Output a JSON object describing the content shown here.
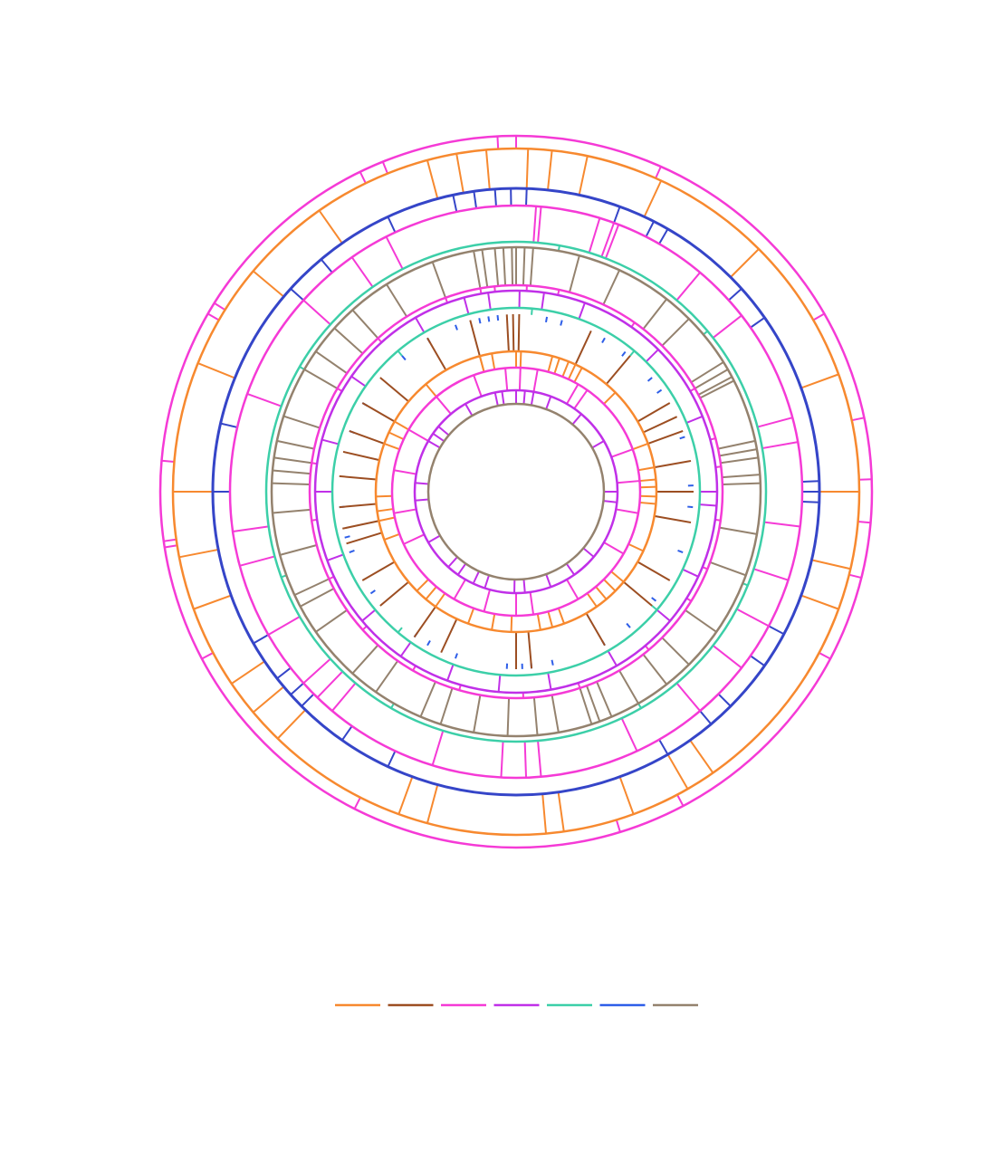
{
  "chart_data": {
    "type": "radial-ticks",
    "series": [
      {
        "color": "#f53ad6",
        "values": [
          -3,
          0,
          24,
          60,
          78,
          88,
          95,
          104,
          118,
          152,
          163,
          207,
          242,
          261,
          262,
          275,
          300,
          302,
          334,
          338
        ]
      },
      {
        "color": "#f7892f",
        "values": [
          -5,
          2,
          6,
          12,
          25,
          45,
          70,
          90,
          103,
          110,
          145,
          150,
          160,
          172,
          175,
          195,
          200,
          224,
          230,
          236,
          250,
          259,
          270,
          292,
          310,
          325,
          345,
          350
        ]
      },
      {
        "color": "#3545c8",
        "values": [
          -4,
          -1,
          2,
          20,
          27,
          30,
          48,
          55,
          88,
          90,
          92,
          118,
          125,
          135,
          140,
          150,
          205,
          215,
          225,
          228,
          232,
          240,
          270,
          283,
          312,
          320,
          335,
          348,
          352
        ]
      },
      {
        "color": "#f53ad6",
        "values": [
          4,
          5,
          17,
          20,
          21,
          40,
          52,
          75,
          80,
          97,
          108,
          118,
          128,
          140,
          155,
          175,
          178,
          183,
          197,
          220,
          224,
          228,
          240,
          255,
          262,
          290,
          312,
          325,
          333
        ]
      },
      {
        "color": "#3ccfa8",
        "values": [
          10,
          50,
          112,
          150,
          210,
          250,
          300
        ]
      },
      {
        "color": "#94826e",
        "values": [
          -8,
          -5,
          -3,
          -1,
          0,
          2,
          4,
          15,
          25,
          38,
          45,
          58,
          60,
          62,
          63,
          78,
          80,
          82,
          86,
          88,
          100,
          110,
          125,
          135,
          142,
          150,
          157,
          160,
          162,
          170,
          175,
          182,
          190,
          198,
          203,
          215,
          222,
          235,
          242,
          245,
          255,
          265,
          272,
          275,
          278,
          282,
          288,
          300,
          305,
          312,
          318,
          328,
          340,
          350
        ]
      },
      {
        "color": "#f53ad6",
        "values": [
          -10,
          -6,
          3,
          12,
          35,
          60,
          75,
          83,
          98,
          112,
          122,
          140,
          162,
          178,
          196,
          210,
          228,
          245,
          262,
          278,
          300,
          318,
          340
        ]
      },
      {
        "color": "#c030e8",
        "values": [
          -15,
          -8,
          1,
          8,
          20,
          45,
          68,
          90,
          94,
          115,
          130,
          150,
          170,
          185,
          200,
          215,
          230,
          250,
          270,
          285,
          305,
          330
        ]
      },
      {
        "color": "#3ccfa8",
        "values": [
          5,
          40,
          130,
          220,
          320
        ]
      },
      {
        "color": "#2e5ee8",
        "values": [
          -12,
          -9,
          -6,
          10,
          15,
          30,
          38,
          50,
          55,
          72,
          88,
          90,
          95,
          110,
          128,
          140,
          150,
          168,
          175,
          178,
          183,
          200,
          210,
          215,
          235,
          250,
          255,
          265,
          290,
          300,
          320,
          330,
          340
        ]
      },
      {
        "color": "#9c4e22",
        "values": [
          -3,
          -1,
          1,
          25,
          40,
          60,
          65,
          70,
          80,
          90,
          100,
          120,
          130,
          150,
          175,
          180,
          205,
          215,
          230,
          240,
          253,
          258,
          265,
          275,
          283,
          290,
          300,
          310,
          330,
          345
        ]
      },
      {
        "color": "#f7892f",
        "values": [
          -15,
          -10,
          0,
          2,
          15,
          18,
          22,
          25,
          28,
          45,
          70,
          80,
          85,
          88,
          92,
          95,
          115,
          130,
          135,
          140,
          145,
          160,
          165,
          170,
          182,
          190,
          200,
          215,
          220,
          225,
          250,
          258,
          262,
          268,
          290,
          295,
          300,
          320,
          345
        ]
      },
      {
        "color": "#f53ad6",
        "values": [
          -20,
          -5,
          2,
          10,
          30,
          35,
          70,
          85,
          100,
          120,
          150,
          172,
          180,
          195,
          210,
          245,
          260,
          280,
          300,
          320
        ]
      },
      {
        "color": "#c030e8",
        "values": [
          -12,
          -8,
          0,
          5,
          10,
          20,
          40,
          60,
          90,
          96,
          130,
          145,
          160,
          175,
          181,
          198,
          205,
          215,
          222,
          240,
          265,
          275,
          300,
          305,
          310,
          330
        ]
      },
      {
        "color": "#94826e",
        "values": []
      }
    ],
    "legend_colors": [
      "#f7892f",
      "#9c4e22",
      "#f53ad6",
      "#c030e8",
      "#3ccfa8",
      "#2e5ee8",
      "#94826e"
    ]
  }
}
